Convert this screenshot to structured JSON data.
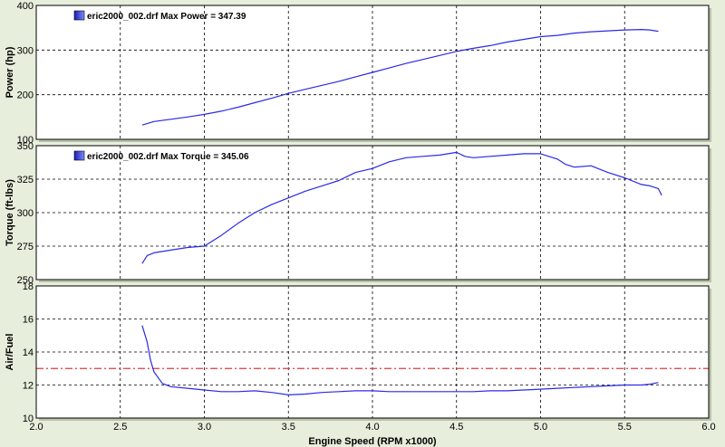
{
  "colors": {
    "background": "#e7eedc",
    "plot_background": "#ffffff",
    "series": "#2a2ae6",
    "reference_line": "#e03a3a",
    "grid": "#000000"
  },
  "chart_data": [
    {
      "type": "line",
      "ylabel": "Power (hp)",
      "ylim": [
        100,
        400
      ],
      "yticks": [
        "100",
        "200",
        "300",
        "400"
      ],
      "xlim": [
        2.0,
        6.0
      ],
      "grid": true,
      "legend_position": "top-left",
      "series": [
        {
          "name": "eric2000_002.drf Max Power = 347.39",
          "x": [
            2.63,
            2.7,
            2.8,
            2.9,
            3.0,
            3.1,
            3.2,
            3.3,
            3.4,
            3.5,
            3.6,
            3.7,
            3.8,
            3.9,
            4.0,
            4.1,
            4.2,
            4.3,
            4.4,
            4.5,
            4.6,
            4.7,
            4.8,
            4.9,
            5.0,
            5.1,
            5.2,
            5.3,
            5.4,
            5.5,
            5.6,
            5.65,
            5.7
          ],
          "y": [
            132,
            140,
            145,
            150,
            156,
            163,
            172,
            182,
            192,
            203,
            212,
            221,
            230,
            240,
            250,
            260,
            270,
            279,
            288,
            297,
            304,
            310,
            318,
            324,
            330,
            333,
            338,
            341,
            343,
            345,
            346,
            345,
            342
          ]
        }
      ]
    },
    {
      "type": "line",
      "ylabel": "Torque (ft-lbs)",
      "ylim": [
        250,
        350
      ],
      "yticks": [
        "250",
        "275",
        "300",
        "325",
        "350"
      ],
      "xlim": [
        2.0,
        6.0
      ],
      "grid": true,
      "legend_position": "top-left",
      "series": [
        {
          "name": "eric2000_002.drf Max Torque = 345.06",
          "x": [
            2.63,
            2.66,
            2.7,
            2.75,
            2.8,
            2.9,
            3.0,
            3.1,
            3.2,
            3.3,
            3.4,
            3.5,
            3.6,
            3.7,
            3.8,
            3.9,
            4.0,
            4.1,
            4.2,
            4.3,
            4.4,
            4.5,
            4.55,
            4.6,
            4.7,
            4.8,
            4.9,
            5.0,
            5.1,
            5.15,
            5.2,
            5.3,
            5.4,
            5.5,
            5.6,
            5.65,
            5.7,
            5.72
          ],
          "y": [
            262,
            268,
            270,
            271,
            272,
            274,
            275,
            283,
            292,
            300,
            306,
            311,
            316,
            320,
            324,
            330,
            333,
            338,
            341,
            342,
            343,
            345,
            342,
            341,
            342,
            343,
            344,
            344,
            340,
            336,
            334,
            335,
            330,
            326,
            321,
            320,
            318,
            313
          ]
        }
      ]
    },
    {
      "type": "line",
      "ylabel": "Air/Fuel",
      "ylim": [
        10,
        18
      ],
      "yticks": [
        "10",
        "12",
        "14",
        "16",
        "18"
      ],
      "xlim": [
        2.0,
        6.0
      ],
      "xticks": [
        "2.0",
        "2.5",
        "3.0",
        "3.5",
        "4.0",
        "4.5",
        "5.0",
        "5.5",
        "6.0"
      ],
      "xlabel": "Engine Speed (RPM x1000)",
      "grid": true,
      "reference_line_y": 13.0,
      "series": [
        {
          "x": [
            2.63,
            2.66,
            2.68,
            2.7,
            2.75,
            2.8,
            2.9,
            3.0,
            3.1,
            3.2,
            3.3,
            3.4,
            3.5,
            3.6,
            3.7,
            3.8,
            3.9,
            4.0,
            4.1,
            4.2,
            4.3,
            4.4,
            4.5,
            4.6,
            4.7,
            4.8,
            4.9,
            5.0,
            5.1,
            5.2,
            5.3,
            5.4,
            5.5,
            5.6,
            5.65,
            5.7
          ],
          "y": [
            15.6,
            14.6,
            13.5,
            12.8,
            12.1,
            11.9,
            11.8,
            11.7,
            11.6,
            11.6,
            11.65,
            11.55,
            11.4,
            11.45,
            11.55,
            11.6,
            11.65,
            11.65,
            11.6,
            11.6,
            11.6,
            11.6,
            11.6,
            11.6,
            11.65,
            11.65,
            11.7,
            11.75,
            11.8,
            11.85,
            11.9,
            11.95,
            12.0,
            12.0,
            12.05,
            12.15
          ]
        }
      ]
    }
  ]
}
